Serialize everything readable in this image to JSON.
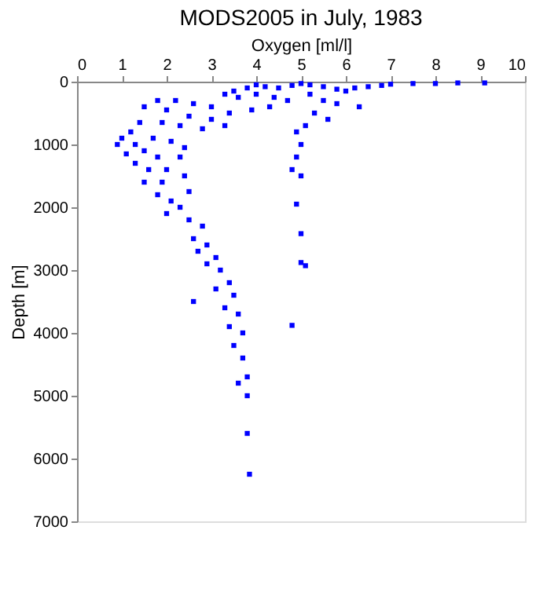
{
  "chart_data": {
    "type": "scatter",
    "title": "MODS2005 in July, 1983",
    "xlabel": "Oxygen [ml/l]",
    "ylabel": "Depth [m]",
    "xlim": [
      0,
      10
    ],
    "xticks": [
      0,
      1,
      2,
      3,
      4,
      5,
      6,
      7,
      8,
      9,
      10
    ],
    "ylim": [
      7000,
      0
    ],
    "yticks": [
      0,
      1000,
      2000,
      3000,
      4000,
      5000,
      6000,
      7000
    ],
    "grid": false,
    "legend": false,
    "marker": "square",
    "series": [
      {
        "color": "#0000ff",
        "x": [
          9.1,
          8.5,
          8.0,
          7.5,
          7.0,
          6.8,
          6.5,
          6.2,
          6.0,
          5.8,
          5.5,
          5.2,
          5.0,
          4.8,
          4.5,
          4.2,
          4.0,
          3.8,
          3.5,
          3.3,
          3.6,
          4.0,
          4.4,
          4.7,
          4.3,
          3.9,
          3.4,
          3.0,
          2.6,
          2.2,
          1.8,
          1.5,
          2.0,
          2.5,
          3.0,
          3.3,
          2.8,
          2.3,
          1.9,
          1.4,
          1.2,
          1.0,
          0.9,
          1.3,
          1.7,
          2.1,
          2.4,
          1.5,
          1.1,
          1.8,
          2.3,
          1.3,
          1.6,
          2.0,
          1.5,
          1.9,
          2.4,
          1.8,
          2.1,
          2.5,
          2.3,
          2.0,
          2.5,
          2.8,
          2.6,
          2.9,
          2.7,
          3.1,
          2.9,
          3.2,
          3.4,
          3.1,
          3.5,
          3.3,
          3.6,
          2.6,
          3.4,
          3.7,
          3.5,
          3.7,
          3.8,
          3.6,
          3.8,
          3.8,
          3.85,
          5.2,
          5.5,
          5.8,
          6.3,
          5.3,
          5.6,
          5.1,
          4.9,
          5.0,
          4.9,
          4.8,
          5.0,
          4.9,
          5.0,
          5.0,
          5.1,
          4.8
        ],
        "values": [
          20,
          20,
          30,
          30,
          40,
          60,
          80,
          100,
          150,
          120,
          80,
          50,
          30,
          60,
          100,
          80,
          50,
          100,
          150,
          200,
          250,
          200,
          250,
          300,
          400,
          450,
          500,
          400,
          350,
          300,
          300,
          400,
          450,
          550,
          600,
          700,
          750,
          700,
          650,
          650,
          800,
          900,
          1000,
          1000,
          900,
          950,
          1050,
          1100,
          1150,
          1200,
          1200,
          1300,
          1400,
          1400,
          1600,
          1600,
          1500,
          1800,
          1900,
          1750,
          2000,
          2100,
          2200,
          2300,
          2500,
          2600,
          2700,
          2800,
          2900,
          3000,
          3200,
          3300,
          3400,
          3600,
          3700,
          3500,
          3900,
          4000,
          4200,
          4400,
          4700,
          4800,
          5000,
          5600,
          6250,
          200,
          300,
          350,
          400,
          500,
          600,
          700,
          800,
          1000,
          1200,
          1400,
          1500,
          1950,
          2420,
          2880,
          2930,
          3880
        ]
      }
    ]
  }
}
